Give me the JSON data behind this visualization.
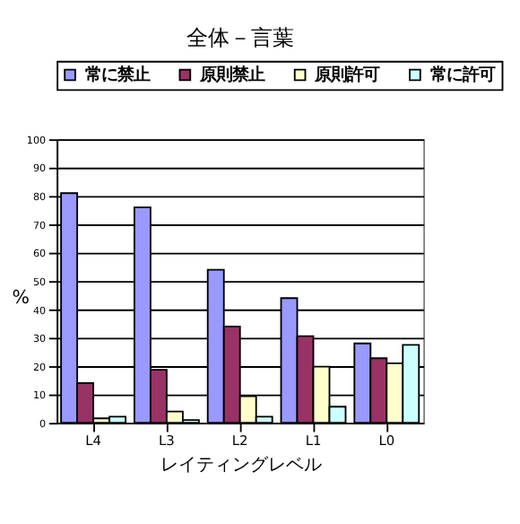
{
  "chart_data": {
    "type": "bar",
    "title": "全体－言葉",
    "xlabel": "レイティングレベル",
    "ylabel": "%",
    "categories": [
      "L4",
      "L3",
      "L2",
      "L1",
      "L0"
    ],
    "series": [
      {
        "name": "常に禁止",
        "color": "#9999ff",
        "values": [
          81,
          76,
          54,
          44,
          28
        ]
      },
      {
        "name": "原則禁止",
        "color": "#993366",
        "values": [
          14,
          18.7,
          34,
          30.6,
          22.8
        ]
      },
      {
        "name": "原則許可",
        "color": "#ffffcc",
        "values": [
          1.6,
          4,
          9.4,
          19.8,
          21
        ]
      },
      {
        "name": "常に許可",
        "color": "#ccffff",
        "values": [
          2.2,
          1,
          2.2,
          5.7,
          27.5
        ]
      }
    ],
    "ylim": [
      0,
      100
    ],
    "yticks": [
      0,
      10,
      20,
      30,
      40,
      50,
      60,
      70,
      80,
      90,
      100
    ],
    "grid": "y",
    "legend": "top"
  }
}
